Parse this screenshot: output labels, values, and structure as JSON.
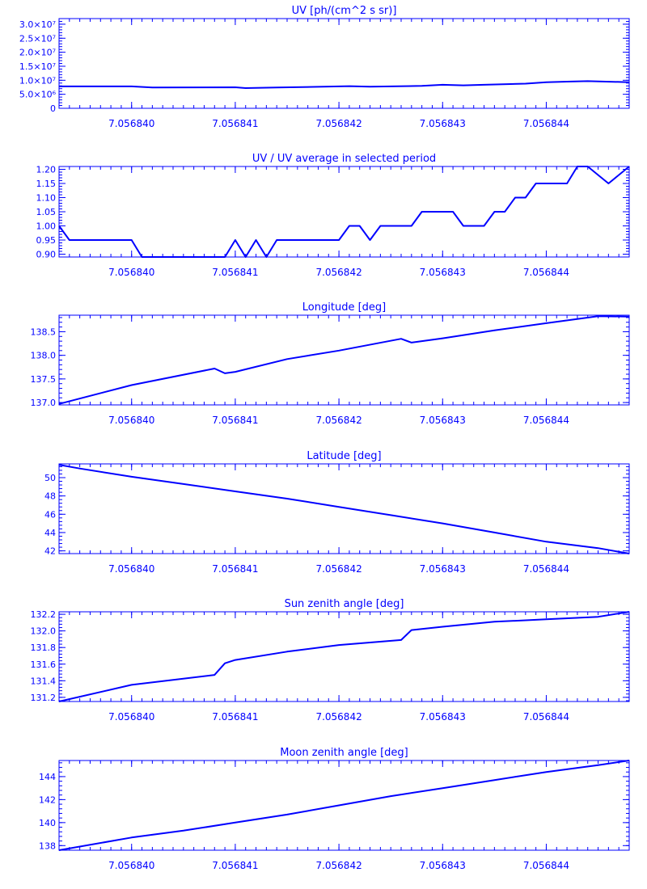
{
  "style": {
    "color": "#0000ff",
    "background": "#ffffff"
  },
  "x_axis": {
    "range": [
      7.0568393,
      7.0568448
    ],
    "ticks": [
      7.05684,
      7.056841,
      7.056842,
      7.056843,
      7.056844
    ],
    "tick_labels": [
      "7.056840",
      "7.056841",
      "7.056842",
      "7.056843",
      "7.056844"
    ]
  },
  "chart_data": [
    {
      "type": "line",
      "title": "UV [ph/(cm^2 s sr)]",
      "ylim": [
        0,
        32000000
      ],
      "yticks": [
        0,
        5000000,
        10000000,
        15000000,
        20000000,
        25000000,
        30000000
      ],
      "ytick_labels": [
        "0",
        "5.0×10⁶",
        "1.0×10⁷",
        "1.5×10⁷",
        "2.0×10⁷",
        "2.5×10⁷",
        "3.0×10⁷"
      ],
      "x": [
        7.0568393,
        7.05684,
        7.0568402,
        7.056841,
        7.0568411,
        7.0568414,
        7.056842,
        7.0568421,
        7.0568423,
        7.0568428,
        7.056843,
        7.0568432,
        7.0568434,
        7.0568438,
        7.056844,
        7.0568442,
        7.0568444,
        7.0568448
      ],
      "y": [
        7800000,
        7800000,
        7400000,
        7500000,
        7200000,
        7400000,
        7800000,
        7900000,
        7700000,
        8000000,
        8400000,
        8200000,
        8400000,
        8800000,
        9300000,
        9500000,
        9700000,
        9300000
      ]
    },
    {
      "type": "line",
      "title": "UV / UV average in selected period",
      "ylim": [
        0.89,
        1.21
      ],
      "yticks": [
        0.9,
        0.95,
        1.0,
        1.05,
        1.1,
        1.15,
        1.2
      ],
      "ytick_labels": [
        "0.90",
        "0.95",
        "1.00",
        "1.05",
        "1.10",
        "1.15",
        "1.20"
      ],
      "x": [
        7.0568393,
        7.0568394,
        7.0568399,
        7.05684,
        7.0568401,
        7.0568408,
        7.0568409,
        7.056841,
        7.0568411,
        7.0568412,
        7.0568413,
        7.0568414,
        7.0568415,
        7.0568416,
        7.0568417,
        7.0568418,
        7.0568419,
        7.056842,
        7.0568421,
        7.0568422,
        7.0568423,
        7.0568424,
        7.0568425,
        7.0568426,
        7.0568427,
        7.0568428,
        7.0568429,
        7.056843,
        7.0568431,
        7.0568432,
        7.0568433,
        7.0568434,
        7.0568435,
        7.0568436,
        7.0568437,
        7.0568438,
        7.0568439,
        7.056844,
        7.0568441,
        7.0568442,
        7.0568443,
        7.0568444,
        7.0568445,
        7.0568446,
        7.0568447,
        7.0568448
      ],
      "y": [
        1.0,
        0.95,
        0.95,
        0.95,
        0.89,
        0.89,
        0.89,
        0.95,
        0.89,
        0.95,
        0.89,
        0.95,
        0.95,
        0.95,
        0.95,
        0.95,
        0.95,
        0.95,
        1.0,
        1.0,
        0.95,
        1.0,
        1.0,
        1.0,
        1.0,
        1.05,
        1.05,
        1.05,
        1.05,
        1.0,
        1.0,
        1.0,
        1.05,
        1.05,
        1.1,
        1.1,
        1.15,
        1.15,
        1.15,
        1.15,
        1.21,
        1.21,
        1.18,
        1.15,
        1.18,
        1.21
      ]
    },
    {
      "type": "line",
      "title": "Longitude [deg]",
      "ylim": [
        136.95,
        138.85
      ],
      "yticks": [
        137.0,
        137.5,
        138.0,
        138.5
      ],
      "ytick_labels": [
        "137.0",
        "137.5",
        "138.0",
        "138.5"
      ],
      "x": [
        7.0568393,
        7.05684,
        7.0568408,
        7.0568409,
        7.056841,
        7.0568415,
        7.056842,
        7.0568426,
        7.0568427,
        7.056843,
        7.0568435,
        7.056844,
        7.0568445,
        7.0568448
      ],
      "y": [
        136.97,
        137.37,
        137.72,
        137.62,
        137.65,
        137.92,
        138.1,
        138.35,
        138.27,
        138.36,
        138.53,
        138.68,
        138.83,
        138.82
      ]
    },
    {
      "type": "line",
      "title": "Latitude [deg]",
      "ylim": [
        41.7,
        51.5
      ],
      "yticks": [
        42,
        44,
        46,
        48,
        50
      ],
      "ytick_labels": [
        "42",
        "44",
        "46",
        "48",
        "50"
      ],
      "x": [
        7.0568393,
        7.0568395,
        7.05684,
        7.0568405,
        7.056841,
        7.0568415,
        7.056842,
        7.0568425,
        7.056843,
        7.0568435,
        7.056844,
        7.0568445,
        7.0568448
      ],
      "y": [
        51.4,
        51.0,
        50.1,
        49.3,
        48.5,
        47.7,
        46.8,
        45.9,
        45.0,
        44.0,
        43.0,
        42.3,
        41.7
      ]
    },
    {
      "type": "line",
      "title": "Sun zenith angle [deg]",
      "ylim": [
        131.15,
        132.23
      ],
      "yticks": [
        131.2,
        131.4,
        131.6,
        131.8,
        132.0,
        132.2
      ],
      "ytick_labels": [
        "131.2",
        "131.4",
        "131.6",
        "131.8",
        "132.0",
        "132.2"
      ],
      "x": [
        7.0568393,
        7.05684,
        7.0568408,
        7.0568409,
        7.056841,
        7.0568415,
        7.056842,
        7.0568426,
        7.0568427,
        7.056843,
        7.0568435,
        7.056844,
        7.0568445,
        7.0568448
      ],
      "y": [
        131.15,
        131.35,
        131.47,
        131.61,
        131.65,
        131.75,
        131.83,
        131.89,
        132.01,
        132.05,
        132.11,
        132.14,
        132.17,
        132.23
      ]
    },
    {
      "type": "line",
      "title": "Moon zenith angle [deg]",
      "ylim": [
        137.6,
        145.4
      ],
      "yticks": [
        138,
        140,
        142,
        144
      ],
      "ytick_labels": [
        "138",
        "140",
        "142",
        "144"
      ],
      "x": [
        7.0568393,
        7.05684,
        7.0568405,
        7.056841,
        7.0568415,
        7.056842,
        7.0568425,
        7.056843,
        7.0568435,
        7.056844,
        7.0568445,
        7.0568448
      ],
      "y": [
        137.6,
        138.7,
        139.3,
        140.0,
        140.7,
        141.5,
        142.3,
        143.0,
        143.7,
        144.4,
        145.0,
        145.4
      ]
    }
  ]
}
